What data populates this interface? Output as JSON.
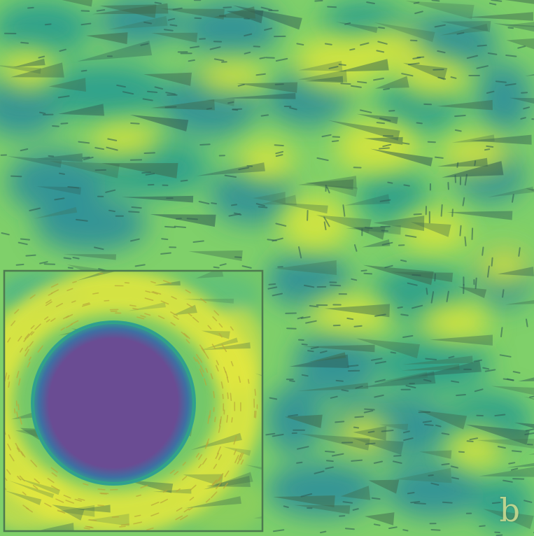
{
  "panel_label": "b",
  "palette": {
    "base": "#7fd06a",
    "low": "#2a9d8f",
    "mid": "#35b779",
    "high": "#e0e83a",
    "peak": "#f0e442",
    "core": "#6a4c93",
    "core_edge": "#3a7fa0",
    "glyph": "#3f6b4f",
    "glyph_dark": "#2f5a52",
    "inset_frame": "#4d7a4f"
  }
}
